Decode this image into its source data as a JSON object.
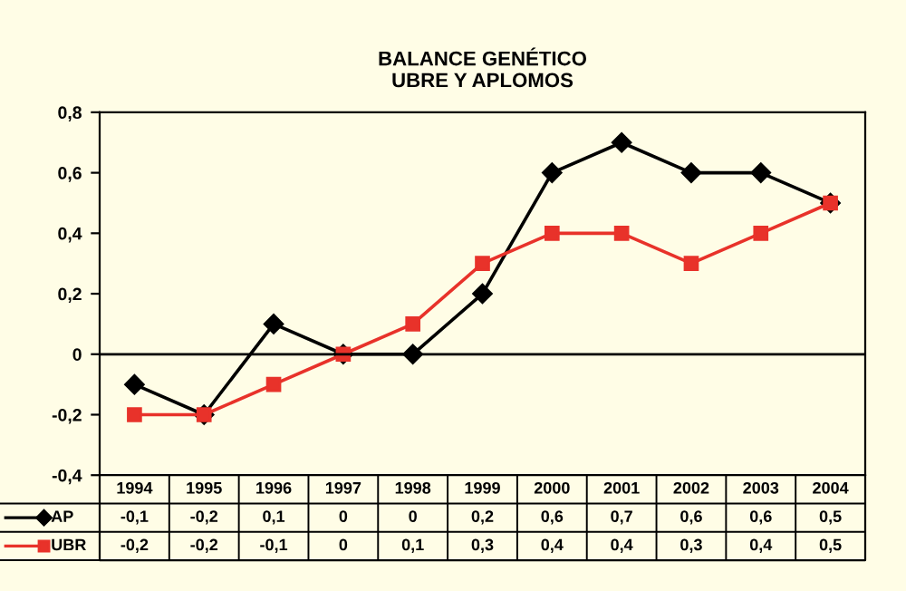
{
  "chart_data": {
    "type": "line",
    "title": "BALANCE GENÉTICO\nUBRE Y APLOMOS",
    "categories": [
      "1994",
      "1995",
      "1996",
      "1997",
      "1998",
      "1999",
      "2000",
      "2001",
      "2002",
      "2003",
      "2004"
    ],
    "series": [
      {
        "name": "AP",
        "color": "#000000",
        "marker": "diamond",
        "values": [
          -0.1,
          -0.2,
          0.1,
          0,
          0,
          0.2,
          0.6,
          0.7,
          0.6,
          0.6,
          0.5
        ],
        "value_labels": [
          "-0,1",
          "-0,2",
          "0,1",
          "0",
          "0",
          "0,2",
          "0,6",
          "0,7",
          "0,6",
          "0,6",
          "0,5"
        ]
      },
      {
        "name": "UBR",
        "color": "#e8322a",
        "marker": "square",
        "values": [
          -0.2,
          -0.2,
          -0.1,
          0,
          0.1,
          0.3,
          0.4,
          0.4,
          0.3,
          0.4,
          0.5
        ],
        "value_labels": [
          "-0,2",
          "-0,2",
          "-0,1",
          "0",
          "0,1",
          "0,3",
          "0,4",
          "0,4",
          "0,3",
          "0,4",
          "0,5"
        ]
      }
    ],
    "ylim": [
      -0.4,
      0.8
    ],
    "yticks": [
      {
        "value": -0.4,
        "label": "-0,4"
      },
      {
        "value": -0.2,
        "label": "-0,2"
      },
      {
        "value": 0,
        "label": "0"
      },
      {
        "value": 0.2,
        "label": "0,2"
      },
      {
        "value": 0.4,
        "label": "0,4"
      },
      {
        "value": 0.6,
        "label": "0,6"
      },
      {
        "value": 0.8,
        "label": "0,8"
      }
    ],
    "ref_lines": [
      {
        "axis": "y",
        "value": 0,
        "color": "#000000"
      }
    ],
    "grid": false,
    "legend": "bottom left",
    "line_style": "solid"
  }
}
